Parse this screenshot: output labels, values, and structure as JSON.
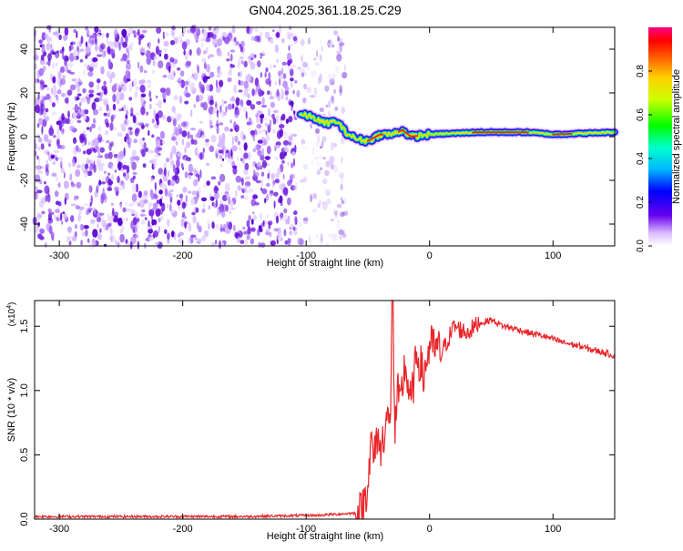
{
  "title": "GN04.2025.361.18.25.C29",
  "chart_data": [
    {
      "type": "heatmap",
      "xlabel": "Height of straight line (km)",
      "ylabel": "Frequency (Hz)",
      "xlim": [
        -320,
        150
      ],
      "ylim": [
        -50,
        50
      ],
      "xticks": [
        -300,
        -200,
        -100,
        0,
        100
      ],
      "yticks": [
        -40,
        -20,
        0,
        20,
        40
      ],
      "colorbar": {
        "label": "Normalized spectral amplitude",
        "range": [
          0,
          1
        ],
        "ticks": [
          "0.0",
          "0.2",
          "0.4",
          "0.6",
          "0.8"
        ]
      },
      "ridge": [
        {
          "x": -105,
          "y": 10
        },
        {
          "x": -95,
          "y": 9
        },
        {
          "x": -85,
          "y": 6
        },
        {
          "x": -75,
          "y": 7
        },
        {
          "x": -68,
          "y": 2
        },
        {
          "x": -60,
          "y": -1
        },
        {
          "x": -50,
          "y": -2
        },
        {
          "x": -40,
          "y": 1
        },
        {
          "x": -30,
          "y": 1
        },
        {
          "x": -22,
          "y": 3
        },
        {
          "x": -15,
          "y": 0
        },
        {
          "x": 0,
          "y": 1
        },
        {
          "x": 40,
          "y": 2
        },
        {
          "x": 80,
          "y": 2
        },
        {
          "x": 100,
          "y": 1
        },
        {
          "x": 150,
          "y": 2
        }
      ]
    },
    {
      "type": "line",
      "xlabel": "Height of straight line (km)",
      "ylabel": "SNR (10 * v/v)",
      "yscale_label": "(x10",
      "yscale_exp": "4",
      "xlim": [
        -320,
        150
      ],
      "ylim": [
        0,
        1.7
      ],
      "xticks": [
        -300,
        -200,
        -100,
        0,
        100
      ],
      "yticks": [
        "0.0",
        "0.5",
        "1.0",
        "1.5"
      ],
      "series": [
        {
          "color": "#e8262a",
          "x": [
            -320,
            -250,
            -150,
            -90,
            -55,
            -50,
            -47,
            -45,
            -42,
            -40,
            -35,
            -32,
            -30,
            -28,
            -26,
            -24,
            -20,
            -15,
            -10,
            -5,
            0,
            10,
            20,
            30,
            40,
            50,
            60,
            70,
            80,
            90,
            100,
            110,
            120,
            130,
            140,
            150
          ],
          "y": [
            0.02,
            0.02,
            0.02,
            0.03,
            0.05,
            0.3,
            0.6,
            0.45,
            0.7,
            0.5,
            0.8,
            0.7,
            1.7,
            0.65,
            1.0,
            0.85,
            1.2,
            0.9,
            1.3,
            1.1,
            1.35,
            1.3,
            1.5,
            1.45,
            1.52,
            1.55,
            1.5,
            1.48,
            1.45,
            1.43,
            1.4,
            1.37,
            1.35,
            1.32,
            1.3,
            1.27
          ]
        }
      ]
    }
  ]
}
